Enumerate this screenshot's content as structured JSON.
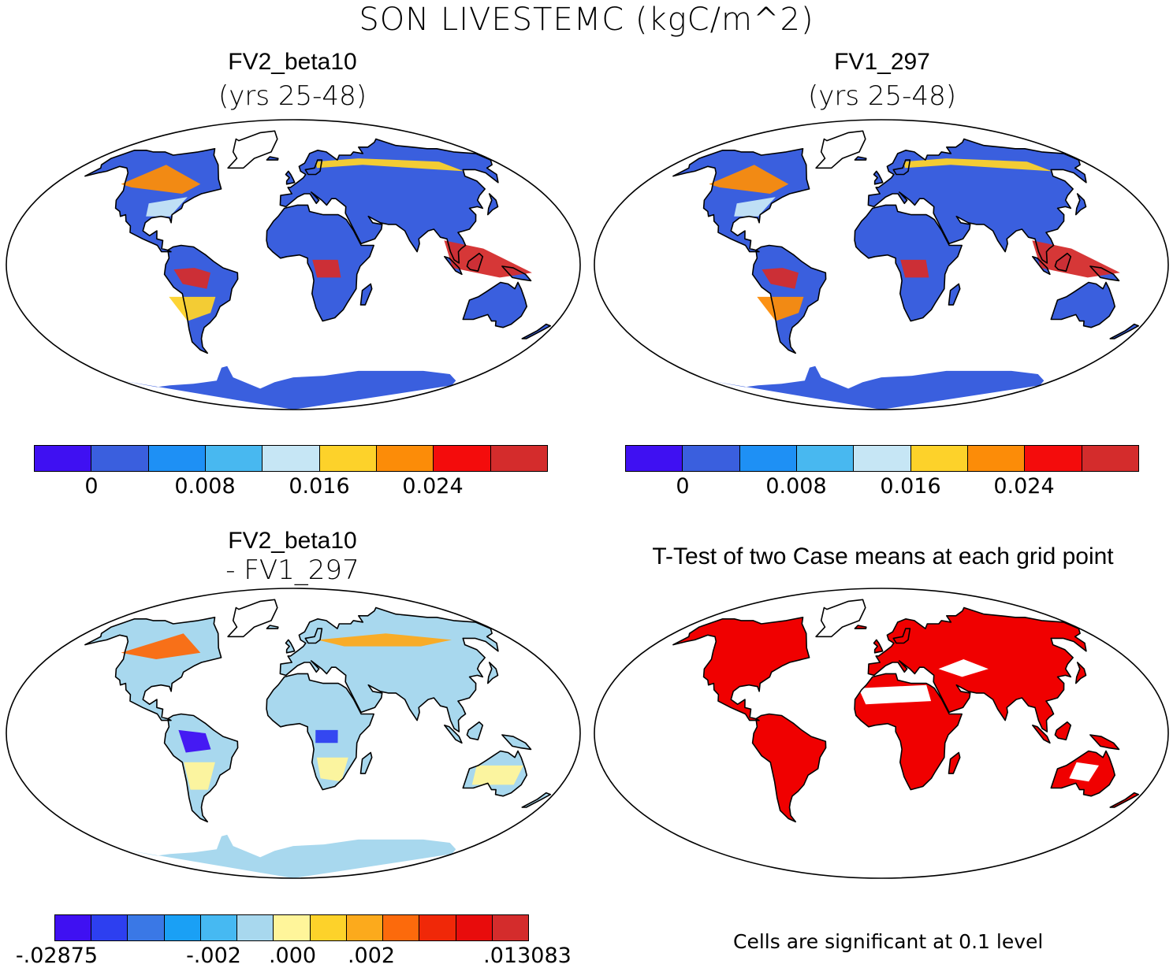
{
  "figure": {
    "title": "SON LIVESTEMC (kgC/m^2)",
    "note": "Cells are significant at 0.1 level"
  },
  "colors": {
    "ocean": "#ffffff",
    "coast": "#000000",
    "seq": [
      "#3f10f2",
      "#3a5fde",
      "#1e90f5",
      "#48b8f0",
      "#c6e6f5",
      "#fdd22a",
      "#fc8c08",
      "#f40c0c",
      "#d42c2c"
    ],
    "diff": [
      "#3f10f2",
      "#2d3ff0",
      "#3a78e6",
      "#1aa0f5",
      "#46b9f2",
      "#a8d8ee",
      "#fff59a",
      "#fdd22a",
      "#fcaa1c",
      "#fc6a0c",
      "#f02808",
      "#e80c0c",
      "#d42c2c"
    ],
    "sig": "#f00000"
  },
  "panels": [
    {
      "id": "fv2",
      "title": "FV2_beta10",
      "subtitle": "(yrs 25-48)",
      "colorbar": {
        "scheme": "seq",
        "ticks": [
          "0",
          "0.008",
          "0.016",
          "0.024"
        ]
      }
    },
    {
      "id": "fv1",
      "title": "FV1_297",
      "subtitle": "(yrs 25-48)",
      "colorbar": {
        "scheme": "seq",
        "ticks": [
          "0",
          "0.008",
          "0.016",
          "0.024"
        ]
      }
    },
    {
      "id": "diff",
      "title": "FV2_beta10",
      "subtitle": "- FV1_297",
      "colorbar": {
        "scheme": "diff",
        "ticks": [
          "-.02875",
          "-.002",
          ".000",
          ".002",
          ".013083"
        ]
      }
    },
    {
      "id": "ttest",
      "title": "T-Test of two Case means at each grid point"
    }
  ]
}
